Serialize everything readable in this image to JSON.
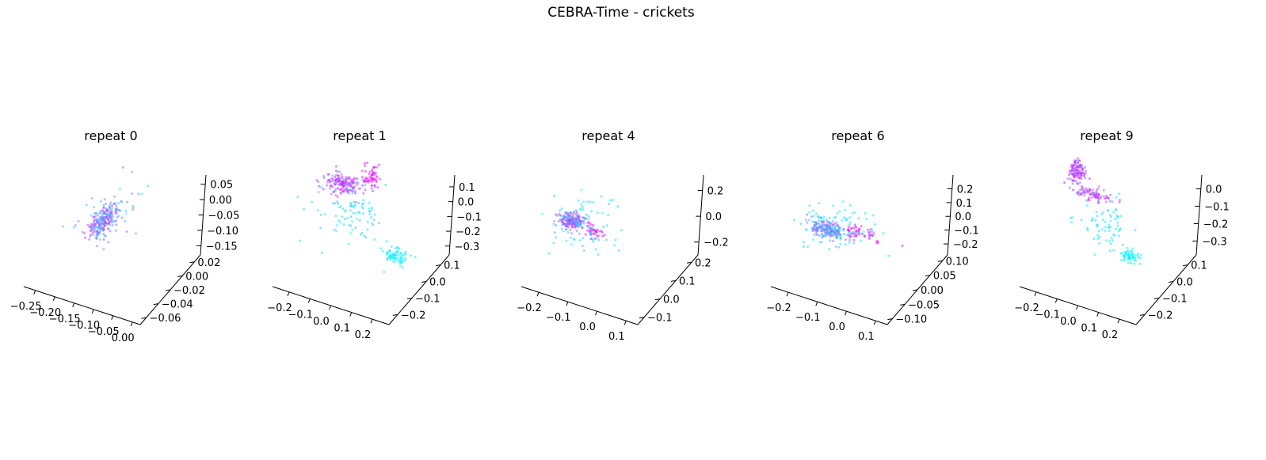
{
  "figure_title": "CEBRA-Time - crickets",
  "chart_data": [
    {
      "type": "scatter",
      "projection": "3d",
      "title": "repeat 0",
      "x_ticks": [
        "−0.25",
        "−0.20",
        "−0.15",
        "−0.10",
        "−0.05",
        "0.00"
      ],
      "y_ticks": [
        "−0.06",
        "−0.04",
        "−0.02",
        "0.00",
        "0.02"
      ],
      "z_ticks": [
        "−0.15",
        "−0.10",
        "−0.05",
        "0.00",
        "0.05"
      ],
      "xlim": [
        -0.28,
        0.02
      ],
      "ylim": [
        -0.07,
        0.03
      ],
      "zlim": [
        -0.18,
        0.08
      ],
      "grid": false,
      "colormap": [
        "#00ffff",
        "#ff00ff"
      ],
      "point_size": 1.5,
      "clusters": [
        {
          "n": 230,
          "x": -0.12,
          "y": -0.02,
          "z": -0.04,
          "sx": 0.012,
          "sy": 0.01,
          "sz": 0.012,
          "color_range": [
            0.15,
            0.85
          ]
        },
        {
          "n": 40,
          "x": -0.12,
          "y": -0.01,
          "z": -0.05,
          "sx": 0.035,
          "sy": 0.02,
          "sz": 0.035,
          "color_range": [
            0.0,
            0.6
          ]
        }
      ]
    },
    {
      "type": "scatter",
      "projection": "3d",
      "title": "repeat 1",
      "x_ticks": [
        "−0.2",
        "−0.1",
        "0.0",
        "0.1",
        "0.2"
      ],
      "y_ticks": [
        "−0.2",
        "−0.1",
        "0.0",
        "0.1"
      ],
      "z_ticks": [
        "−0.3",
        "−0.2",
        "−0.1",
        "0.0",
        "0.1"
      ],
      "xlim": [
        -0.28,
        0.28
      ],
      "ylim": [
        -0.26,
        0.16
      ],
      "zlim": [
        -0.36,
        0.18
      ],
      "grid": false,
      "colormap": [
        "#00ffff",
        "#ff00ff"
      ],
      "point_size": 1.5,
      "clusters": [
        {
          "n": 160,
          "x": -0.1,
          "y": 0.05,
          "z": 0.02,
          "sx": 0.05,
          "sy": 0.02,
          "sz": 0.02,
          "color_range": [
            0.5,
            0.95
          ]
        },
        {
          "n": 60,
          "x": 0.02,
          "y": 0.07,
          "z": 0.09,
          "sx": 0.02,
          "sy": 0.02,
          "sz": 0.04,
          "color_range": [
            0.8,
            1.0
          ]
        },
        {
          "n": 80,
          "x": 0.2,
          "y": 0.0,
          "z": -0.28,
          "sx": 0.03,
          "sy": 0.02,
          "sz": 0.02,
          "color_range": [
            0.0,
            0.15
          ]
        },
        {
          "n": 90,
          "x": -0.02,
          "y": 0.02,
          "z": -0.12,
          "sx": 0.08,
          "sy": 0.05,
          "sz": 0.08,
          "color_range": [
            0.0,
            0.3
          ]
        }
      ]
    },
    {
      "type": "scatter",
      "projection": "3d",
      "title": "repeat 4",
      "x_ticks": [
        "−0.2",
        "−0.1",
        "0.0",
        "0.1"
      ],
      "y_ticks": [
        "−0.1",
        "0.0",
        "0.1",
        "0.2"
      ],
      "z_ticks": [
        "−0.2",
        "0.0",
        "0.2"
      ],
      "xlim": [
        -0.26,
        0.14
      ],
      "ylim": [
        -0.14,
        0.24
      ],
      "zlim": [
        -0.3,
        0.32
      ],
      "grid": false,
      "colormap": [
        "#00ffff",
        "#ff00ff"
      ],
      "point_size": 1.5,
      "clusters": [
        {
          "n": 200,
          "x": -0.14,
          "y": 0.04,
          "z": -0.02,
          "sx": 0.02,
          "sy": 0.015,
          "sz": 0.02,
          "color_range": [
            0.3,
            0.9
          ]
        },
        {
          "n": 40,
          "x": -0.08,
          "y": 0.06,
          "z": -0.08,
          "sx": 0.02,
          "sy": 0.01,
          "sz": 0.02,
          "color_range": [
            0.85,
            1.0
          ]
        },
        {
          "n": 80,
          "x": -0.1,
          "y": 0.05,
          "z": -0.04,
          "sx": 0.06,
          "sy": 0.05,
          "sz": 0.12,
          "color_range": [
            0.0,
            0.3
          ]
        }
      ]
    },
    {
      "type": "scatter",
      "projection": "3d",
      "title": "repeat 6",
      "x_ticks": [
        "−0.2",
        "−0.1",
        "0.0",
        "0.1"
      ],
      "y_ticks": [
        "−0.10",
        "−0.05",
        "0.00",
        "0.05",
        "0.10"
      ],
      "z_ticks": [
        "−0.2",
        "−0.1",
        "0.0",
        "0.1",
        "0.2"
      ],
      "xlim": [
        -0.26,
        0.14
      ],
      "ylim": [
        -0.12,
        0.12
      ],
      "zlim": [
        -0.28,
        0.3
      ],
      "grid": false,
      "colormap": [
        "#00ffff",
        "#ff00ff"
      ],
      "point_size": 1.5,
      "clusters": [
        {
          "n": 200,
          "x": -0.12,
          "y": 0.0,
          "z": -0.08,
          "sx": 0.03,
          "sy": 0.01,
          "sz": 0.02,
          "color_range": [
            0.2,
            0.7
          ]
        },
        {
          "n": 60,
          "x": -0.04,
          "y": 0.02,
          "z": -0.09,
          "sx": 0.04,
          "sy": 0.01,
          "sz": 0.01,
          "color_range": [
            0.8,
            1.0
          ]
        },
        {
          "n": 90,
          "x": -0.1,
          "y": 0.02,
          "z": -0.08,
          "sx": 0.06,
          "sy": 0.03,
          "sz": 0.07,
          "color_range": [
            0.0,
            0.25
          ]
        }
      ]
    },
    {
      "type": "scatter",
      "projection": "3d",
      "title": "repeat 9",
      "x_ticks": [
        "−0.2",
        "−0.1",
        "0.0",
        "0.1",
        "0.2"
      ],
      "y_ticks": [
        "−0.2",
        "−0.1",
        "0.0",
        "0.1"
      ],
      "z_ticks": [
        "−0.3",
        "−0.2",
        "−0.1",
        "0.0"
      ],
      "xlim": [
        -0.28,
        0.28
      ],
      "ylim": [
        -0.26,
        0.16
      ],
      "zlim": [
        -0.38,
        0.08
      ],
      "grid": false,
      "colormap": [
        "#00ffff",
        "#ff00ff"
      ],
      "point_size": 1.5,
      "clusters": [
        {
          "n": 120,
          "x": -0.17,
          "y": 0.06,
          "z": -0.02,
          "sx": 0.02,
          "sy": 0.01,
          "sz": 0.035,
          "color_range": [
            0.5,
            1.0
          ]
        },
        {
          "n": 90,
          "x": -0.07,
          "y": 0.04,
          "z": -0.1,
          "sx": 0.05,
          "sy": 0.01,
          "sz": 0.015,
          "color_range": [
            0.45,
            0.95
          ]
        },
        {
          "n": 60,
          "x": 0.16,
          "y": -0.02,
          "z": -0.31,
          "sx": 0.02,
          "sy": 0.01,
          "sz": 0.015,
          "color_range": [
            0.0,
            0.1
          ]
        },
        {
          "n": 70,
          "x": 0.02,
          "y": 0.0,
          "z": -0.22,
          "sx": 0.07,
          "sy": 0.04,
          "sz": 0.05,
          "color_range": [
            0.0,
            0.2
          ]
        }
      ]
    }
  ]
}
